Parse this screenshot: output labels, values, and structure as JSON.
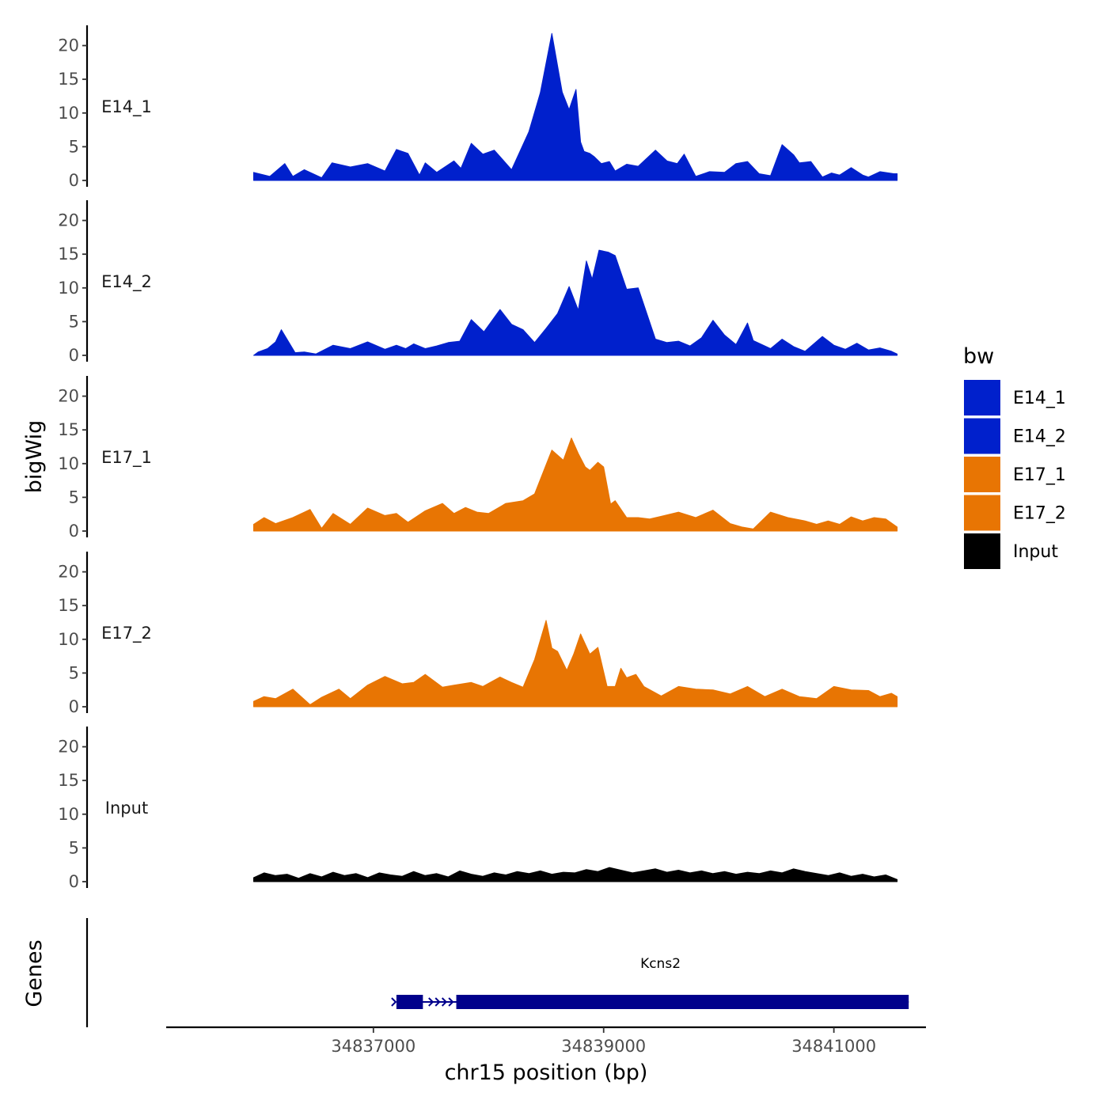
{
  "chart_data": {
    "type": "area",
    "ylabel": "bigWig",
    "xlabel": "chr15 position (bp)",
    "xlim": [
      34835200,
      34841800
    ],
    "ylim": [
      0,
      23
    ],
    "y_ticks": [
      0,
      5,
      10,
      15,
      20
    ],
    "x_ticks": [
      34837000,
      34839000,
      34841000
    ],
    "x_tick_labels": [
      "34837000",
      "34839000",
      "34841000"
    ],
    "legend": {
      "title": "bw",
      "placement": "right",
      "entries": [
        {
          "name": "E14_1",
          "color": "#0020CC"
        },
        {
          "name": "E14_2",
          "color": "#0020CC"
        },
        {
          "name": "E17_1",
          "color": "#E87503"
        },
        {
          "name": "E17_2",
          "color": "#E87503"
        },
        {
          "name": "Input",
          "color": "#000000"
        }
      ]
    },
    "tracks": [
      {
        "name": "E14_1",
        "color": "#0020CC",
        "x": [
          34835960,
          34836100,
          34836230,
          34836300,
          34836400,
          34836550,
          34836640,
          34836800,
          34836950,
          34837100,
          34837200,
          34837300,
          34837400,
          34837450,
          34837550,
          34837700,
          34837760,
          34837850,
          34837950,
          34838050,
          34838200,
          34838350,
          34838450,
          34838550,
          34838640,
          34838700,
          34838760,
          34838800,
          34838830,
          34838880,
          34838920,
          34838980,
          34839050,
          34839100,
          34839200,
          34839300,
          34839450,
          34839550,
          34839640,
          34839700,
          34839800,
          34839920,
          34840050,
          34840150,
          34840250,
          34840350,
          34840450,
          34840550,
          34840650,
          34840700,
          34840800,
          34840900,
          34840980,
          34841050,
          34841150,
          34841250,
          34841300,
          34841400,
          34841520,
          34841550
        ],
        "y": [
          1.2,
          0.6,
          2.5,
          0.6,
          1.6,
          0.4,
          2.6,
          2.0,
          2.5,
          1.4,
          4.6,
          4.0,
          0.8,
          2.6,
          1.2,
          2.9,
          1.8,
          5.5,
          3.9,
          4.5,
          1.6,
          7.2,
          13.0,
          21.8,
          13.1,
          10.5,
          13.5,
          5.7,
          4.3,
          4.0,
          3.5,
          2.5,
          2.8,
          1.4,
          2.4,
          2.1,
          4.5,
          2.9,
          2.5,
          3.9,
          0.6,
          1.3,
          1.2,
          2.5,
          2.8,
          1.0,
          0.7,
          5.3,
          3.8,
          2.6,
          2.8,
          0.5,
          1.1,
          0.8,
          1.9,
          0.8,
          0.5,
          1.3,
          1.0,
          1.0
        ]
      },
      {
        "name": "E14_2",
        "color": "#0020CC",
        "x": [
          34835960,
          34836000,
          34836080,
          34836150,
          34836200,
          34836320,
          34836400,
          34836500,
          34836650,
          34836800,
          34836950,
          34837100,
          34837200,
          34837280,
          34837350,
          34837450,
          34837550,
          34837650,
          34837750,
          34837850,
          34837960,
          34838100,
          34838200,
          34838300,
          34838400,
          34838500,
          34838600,
          34838700,
          34838780,
          34838850,
          34838900,
          34838960,
          34839040,
          34839100,
          34839200,
          34839300,
          34839450,
          34839550,
          34839650,
          34839750,
          34839850,
          34839950,
          34840050,
          34840150,
          34840250,
          34840300,
          34840450,
          34840550,
          34840650,
          34840750,
          34840900,
          34841000,
          34841100,
          34841200,
          34841300,
          34841400,
          34841500,
          34841550
        ],
        "y": [
          0.0,
          0.5,
          1.0,
          2.0,
          3.8,
          0.4,
          0.5,
          0.2,
          1.5,
          1.0,
          2.0,
          0.9,
          1.5,
          1.0,
          1.7,
          1.0,
          1.4,
          1.9,
          2.1,
          5.3,
          3.5,
          6.8,
          4.6,
          3.8,
          1.9,
          4.0,
          6.2,
          10.2,
          6.7,
          14.0,
          11.3,
          15.6,
          15.3,
          14.8,
          9.8,
          10.0,
          2.4,
          1.9,
          2.1,
          1.4,
          2.6,
          5.2,
          3.0,
          1.6,
          4.8,
          2.2,
          1.0,
          2.4,
          1.3,
          0.6,
          2.8,
          1.5,
          0.9,
          1.8,
          0.8,
          1.1,
          0.6,
          0.2
        ]
      },
      {
        "name": "E17_1",
        "color": "#E87503",
        "x": [
          34835960,
          34836050,
          34836150,
          34836300,
          34836450,
          34836550,
          34836650,
          34836800,
          34836950,
          34837100,
          34837200,
          34837300,
          34837450,
          34837600,
          34837700,
          34837800,
          34837900,
          34838000,
          34838150,
          34838300,
          34838400,
          34838550,
          34838650,
          34838720,
          34838780,
          34838840,
          34838880,
          34838950,
          34839000,
          34839060,
          34839100,
          34839200,
          34839300,
          34839400,
          34839500,
          34839650,
          34839800,
          34839950,
          34840100,
          34840200,
          34840300,
          34840450,
          34840600,
          34840750,
          34840850,
          34840950,
          34841050,
          34841150,
          34841250,
          34841350,
          34841450,
          34841550
        ],
        "y": [
          1.0,
          2.0,
          1.1,
          2.0,
          3.2,
          0.4,
          2.6,
          1.0,
          3.4,
          2.3,
          2.6,
          1.3,
          3.0,
          4.1,
          2.6,
          3.5,
          2.8,
          2.6,
          4.1,
          4.5,
          5.5,
          12.0,
          10.5,
          13.8,
          11.5,
          9.5,
          9.0,
          10.2,
          9.5,
          4.0,
          4.5,
          2.0,
          2.0,
          1.8,
          2.2,
          2.8,
          2.0,
          3.1,
          1.1,
          0.6,
          0.3,
          2.8,
          2.0,
          1.5,
          1.0,
          1.5,
          1.0,
          2.1,
          1.5,
          2.0,
          1.8,
          0.6
        ]
      },
      {
        "name": "E17_2",
        "color": "#E87503",
        "x": [
          34835960,
          34836050,
          34836150,
          34836300,
          34836450,
          34836550,
          34836700,
          34836800,
          34836950,
          34837100,
          34837250,
          34837350,
          34837450,
          34837600,
          34837700,
          34837850,
          34837950,
          34838100,
          34838200,
          34838300,
          34838400,
          34838500,
          34838550,
          34838600,
          34838680,
          34838740,
          34838800,
          34838880,
          34838950,
          34839030,
          34839100,
          34839150,
          34839200,
          34839280,
          34839350,
          34839500,
          34839650,
          34839800,
          34839950,
          34840100,
          34840250,
          34840400,
          34840550,
          34840700,
          34840850,
          34841000,
          34841150,
          34841300,
          34841400,
          34841500,
          34841550
        ],
        "y": [
          0.8,
          1.5,
          1.2,
          2.6,
          0.3,
          1.4,
          2.6,
          1.2,
          3.2,
          4.5,
          3.4,
          3.6,
          4.8,
          2.9,
          3.2,
          3.6,
          3.0,
          4.4,
          3.6,
          2.9,
          7.0,
          12.8,
          8.7,
          8.2,
          5.4,
          7.8,
          10.8,
          7.8,
          8.8,
          3.0,
          3.0,
          5.7,
          4.3,
          4.8,
          3.0,
          1.6,
          3.0,
          2.6,
          2.5,
          1.9,
          3.0,
          1.5,
          2.6,
          1.5,
          1.2,
          3.0,
          2.5,
          2.4,
          1.5,
          2.0,
          1.5
        ]
      },
      {
        "name": "Input",
        "color": "#000000",
        "x": [
          34835960,
          34836050,
          34836150,
          34836250,
          34836350,
          34836450,
          34836550,
          34836650,
          34836750,
          34836850,
          34836950,
          34837050,
          34837150,
          34837250,
          34837350,
          34837450,
          34837550,
          34837650,
          34837750,
          34837850,
          34837950,
          34838050,
          34838150,
          34838250,
          34838350,
          34838450,
          34838550,
          34838650,
          34838750,
          34838850,
          34838950,
          34839050,
          34839150,
          34839250,
          34839350,
          34839450,
          34839550,
          34839650,
          34839750,
          34839850,
          34839950,
          34840050,
          34840150,
          34840250,
          34840350,
          34840450,
          34840550,
          34840650,
          34840750,
          34840850,
          34840950,
          34841050,
          34841150,
          34841250,
          34841350,
          34841450,
          34841550
        ],
        "y": [
          0.6,
          1.3,
          0.9,
          1.1,
          0.5,
          1.2,
          0.7,
          1.4,
          0.9,
          1.2,
          0.6,
          1.3,
          1.0,
          0.8,
          1.5,
          0.9,
          1.2,
          0.7,
          1.6,
          1.1,
          0.8,
          1.3,
          1.0,
          1.5,
          1.2,
          1.6,
          1.1,
          1.4,
          1.3,
          1.8,
          1.5,
          2.1,
          1.7,
          1.3,
          1.6,
          1.9,
          1.4,
          1.7,
          1.3,
          1.6,
          1.2,
          1.5,
          1.1,
          1.4,
          1.2,
          1.6,
          1.3,
          1.9,
          1.5,
          1.2,
          0.9,
          1.3,
          0.8,
          1.1,
          0.7,
          1.0,
          0.3
        ]
      }
    ],
    "genes": {
      "title": "Genes",
      "items": [
        {
          "name": "Kcns2",
          "color": "#00008B",
          "start": 34837200,
          "end": 34841650,
          "strand": "+",
          "exons": [
            [
              34837200,
              34837430
            ],
            [
              34837720,
              34841650
            ]
          ]
        }
      ]
    }
  }
}
